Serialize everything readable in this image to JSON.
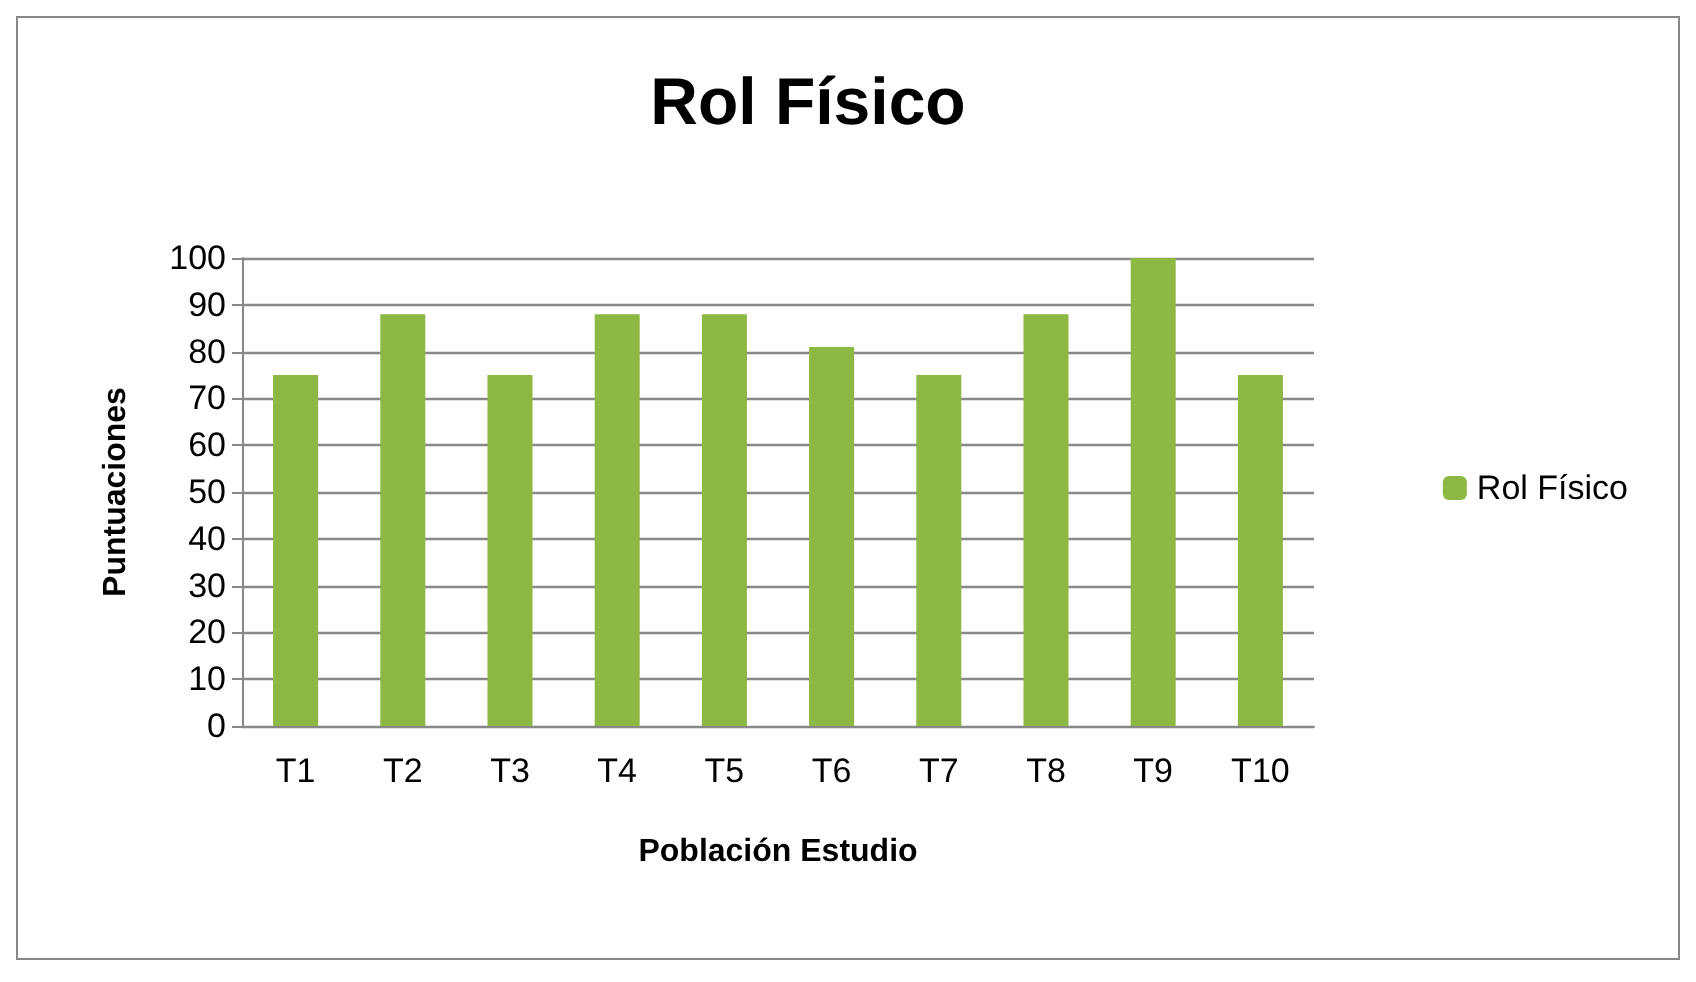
{
  "chart_data": {
    "type": "bar",
    "title": "Rol Físico",
    "xlabel": "Población Estudio",
    "ylabel": "Puntuaciones",
    "categories": [
      "T1",
      "T2",
      "T3",
      "T4",
      "T5",
      "T6",
      "T7",
      "T8",
      "T9",
      "T10"
    ],
    "series": [
      {
        "name": "Rol Físico",
        "color": "#8db843",
        "values": [
          75,
          88,
          75,
          88,
          88,
          81,
          75,
          88,
          100,
          75
        ]
      }
    ],
    "ylim": [
      0,
      100
    ],
    "yticks": [
      0,
      10,
      20,
      30,
      40,
      50,
      60,
      70,
      80,
      90,
      100
    ],
    "grid": "y",
    "legend": "right"
  }
}
